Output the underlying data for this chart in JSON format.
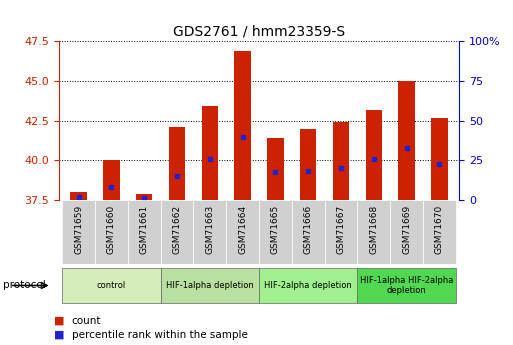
{
  "title": "GDS2761 / hmm23359-S",
  "samples": [
    "GSM71659",
    "GSM71660",
    "GSM71661",
    "GSM71662",
    "GSM71663",
    "GSM71664",
    "GSM71665",
    "GSM71666",
    "GSM71667",
    "GSM71668",
    "GSM71669",
    "GSM71670"
  ],
  "count_values": [
    38.0,
    40.0,
    37.9,
    42.1,
    43.4,
    46.9,
    41.4,
    42.0,
    42.4,
    43.2,
    45.0,
    42.7
  ],
  "percentile_values": [
    2.0,
    8.5,
    1.5,
    15.0,
    26.0,
    40.0,
    18.0,
    18.5,
    20.0,
    26.0,
    33.0,
    23.0
  ],
  "ylim": [
    37.5,
    47.5
  ],
  "y2lim": [
    0,
    100
  ],
  "yticks": [
    37.5,
    40.0,
    42.5,
    45.0,
    47.5
  ],
  "y2ticks": [
    0,
    25,
    50,
    75,
    100
  ],
  "y2ticklabels": [
    "0",
    "25",
    "50",
    "75",
    "100%"
  ],
  "bar_color": "#cc2200",
  "marker_color": "#2222cc",
  "bar_width": 0.5,
  "groups": [
    {
      "label": "control",
      "indices": [
        0,
        1,
        2
      ],
      "color": "#d4edba"
    },
    {
      "label": "HIF-1alpha depletion",
      "indices": [
        3,
        4,
        5
      ],
      "color": "#b8e0a0"
    },
    {
      "label": "HIF-2alpha depletion",
      "indices": [
        6,
        7,
        8
      ],
      "color": "#a0f090"
    },
    {
      "label": "HIF-1alpha HIF-2alpha\ndepletion",
      "indices": [
        9,
        10,
        11
      ],
      "color": "#50d850"
    }
  ],
  "protocol_label": "protocol",
  "legend_count_label": "count",
  "legend_pct_label": "percentile rank within the sample",
  "plot_bg": "#ffffff",
  "yaxis_color": "#cc2200",
  "y2axis_color": "#0000cc",
  "xtick_bg": "#d0d0d0",
  "border_color": "#888888"
}
